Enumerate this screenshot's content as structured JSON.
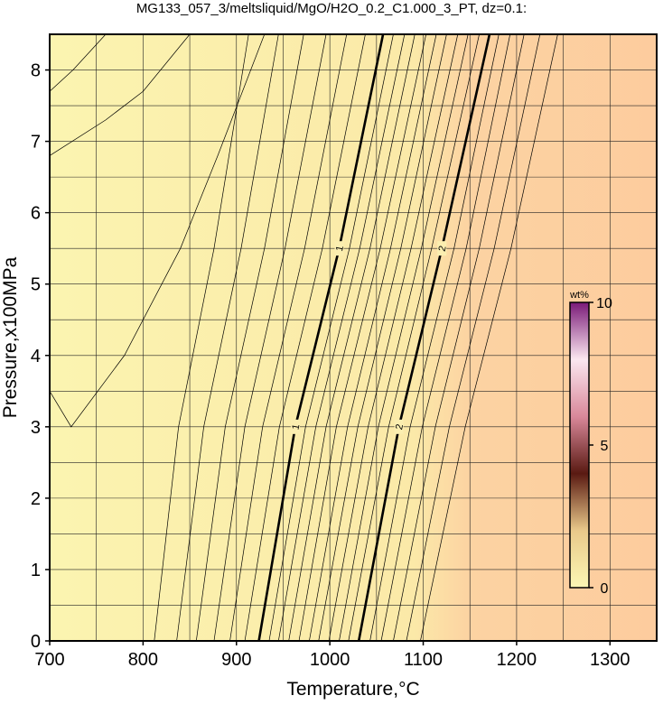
{
  "chart_data": {
    "type": "contour",
    "title": "MG133_057_3/meltsliquid/MgO/H2O_0.2_C1.000_3_PT, dz=0.1:",
    "xlabel": "Temperature,°C",
    "ylabel": "Pressure,x100MPa",
    "xlim": [
      700,
      1350
    ],
    "ylim": [
      0,
      8.5
    ],
    "xticks": [
      700,
      800,
      900,
      1000,
      1100,
      1200,
      1300
    ],
    "yticks": [
      0,
      1,
      2,
      3,
      4,
      5,
      6,
      7,
      8
    ],
    "xgrid": [
      750,
      800,
      850,
      900,
      950,
      1000,
      1050,
      1100,
      1150,
      1200,
      1250,
      1300
    ],
    "ygrid": [
      0.5,
      1,
      1.5,
      2,
      2.5,
      3,
      3.5,
      4,
      4.5,
      5,
      5.5,
      6,
      6.5,
      7,
      7.5,
      8
    ],
    "grid": true,
    "contours": [
      {
        "level": 0.1,
        "x": [
          700,
          725,
          760
        ],
        "y": [
          7.7,
          8.0,
          8.5
        ]
      },
      {
        "level": 0.2,
        "x": [
          700,
          760,
          800,
          850
        ],
        "y": [
          6.8,
          7.3,
          7.7,
          8.5
        ]
      },
      {
        "level": 0.3,
        "x": [
          700,
          723,
          780,
          840,
          880,
          930
        ],
        "y": [
          3.5,
          3.0,
          4.0,
          5.5,
          6.8,
          8.5
        ]
      },
      {
        "level": 0.4,
        "x": [
          812,
          838,
          876,
          913
        ],
        "y": [
          0,
          3,
          5.5,
          8.5
        ]
      },
      {
        "level": 0.5,
        "x": [
          836,
          865,
          905,
          945
        ],
        "y": [
          0,
          3,
          5.5,
          8.5
        ]
      },
      {
        "level": 0.6,
        "x": [
          857,
          888,
          930,
          972
        ],
        "y": [
          0,
          3,
          5.5,
          8.5
        ]
      },
      {
        "level": 0.7,
        "x": [
          876,
          909,
          952,
          996
        ],
        "y": [
          0,
          3,
          5.5,
          8.5
        ]
      },
      {
        "level": 0.8,
        "x": [
          893,
          928,
          973,
          1018
        ],
        "y": [
          0,
          3,
          5.5,
          8.5
        ]
      },
      {
        "level": 0.9,
        "x": [
          909,
          946,
          992,
          1038
        ],
        "y": [
          0,
          3,
          5.5,
          8.5
        ]
      },
      {
        "level": 1,
        "x": [
          924,
          963,
          1010,
          1057
        ],
        "y": [
          0,
          3,
          5.5,
          8.5
        ]
      },
      {
        "level": 1.1,
        "x": [
          935,
          974,
          1021,
          1068
        ],
        "y": [
          0,
          3,
          5.5,
          8.5
        ]
      },
      {
        "level": 1.2,
        "x": [
          945,
          985,
          1032,
          1080
        ],
        "y": [
          0,
          3,
          5.5,
          8.5
        ]
      },
      {
        "level": 1.3,
        "x": [
          956,
          996,
          1043,
          1091
        ],
        "y": [
          0,
          3,
          5.5,
          8.5
        ]
      },
      {
        "level": 1.4,
        "x": [
          967,
          1007,
          1054,
          1103
        ],
        "y": [
          0,
          3,
          5.5,
          8.5
        ]
      },
      {
        "level": 1.5,
        "x": [
          978,
          1019,
          1065,
          1114
        ],
        "y": [
          0,
          3,
          5.5,
          8.5
        ]
      },
      {
        "level": 1.6,
        "x": [
          988,
          1030,
          1076,
          1125
        ],
        "y": [
          0,
          3,
          5.5,
          8.5
        ]
      },
      {
        "level": 1.7,
        "x": [
          999,
          1041,
          1087,
          1137
        ],
        "y": [
          0,
          3,
          5.5,
          8.5
        ]
      },
      {
        "level": 1.8,
        "x": [
          1010,
          1052,
          1098,
          1148
        ],
        "y": [
          0,
          3,
          5.5,
          8.5
        ]
      },
      {
        "level": 1.9,
        "x": [
          1020,
          1063,
          1109,
          1160
        ],
        "y": [
          0,
          3,
          5.5,
          8.5
        ]
      },
      {
        "level": 2,
        "x": [
          1031,
          1074,
          1120,
          1171
        ],
        "y": [
          0,
          3,
          5.5,
          8.5
        ]
      },
      {
        "level": 2.1,
        "x": [
          1043,
          1086,
          1133,
          1181
        ],
        "y": [
          0,
          3,
          5.5,
          8.5
        ]
      },
      {
        "level": 2.2,
        "x": [
          1055,
          1099,
          1146,
          1193
        ],
        "y": [
          0,
          3,
          5.5,
          8.5
        ]
      },
      {
        "level": 2.3,
        "x": [
          1068,
          1113,
          1160,
          1208
        ],
        "y": [
          0,
          3,
          5.5,
          8.5
        ]
      },
      {
        "level": 2.4,
        "x": [
          1082,
          1128,
          1176,
          1225
        ],
        "y": [
          0,
          3,
          5.5,
          8.5
        ]
      },
      {
        "level": 2.5,
        "x": [
          1097,
          1145,
          1194,
          1244
        ],
        "y": [
          0,
          3,
          5.5,
          8.5
        ]
      }
    ],
    "colorbar": {
      "label": "wt%",
      "clim": [
        0,
        10
      ],
      "ticks": [
        0,
        5,
        10
      ],
      "colors": [
        "#fbf7b4",
        "#e9c98a",
        "#5a1a12",
        "#d9889a",
        "#fbe7f0",
        "#7a1a78"
      ]
    }
  }
}
